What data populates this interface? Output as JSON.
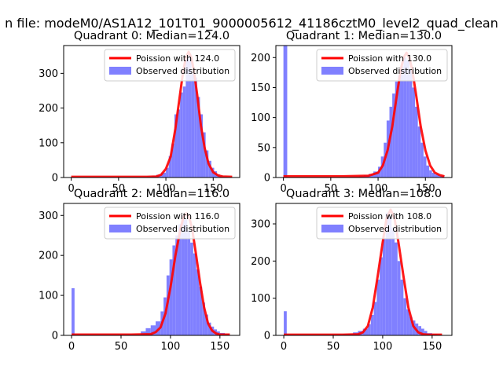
{
  "figure": {
    "suptitle": "n file: modeM0/AS1A12_101T01_9000005612_41186cztM0_level2_quad_clean"
  },
  "colors": {
    "poisson": "#ff0000",
    "observed": "#8080ff",
    "axes": "#000000"
  },
  "chart_data": [
    {
      "type": "bar",
      "title": "Quadrant 0: Median=124.0",
      "xlabel": "",
      "ylabel": "",
      "xlim": [
        -8,
        178
      ],
      "ylim": [
        0,
        380
      ],
      "xticks": [
        0,
        50,
        100,
        150
      ],
      "yticks": [
        0,
        100,
        200,
        300
      ],
      "legend": {
        "position": "upper right",
        "entries": [
          "Poission with 124.0",
          "Observed distribution"
        ]
      },
      "series": [
        {
          "name": "Observed distribution",
          "type": "histogram",
          "bin_edges": [
            0,
            80,
            85,
            90,
            95,
            100,
            103,
            106,
            109,
            112,
            115,
            118,
            121,
            124,
            127,
            130,
            133,
            136,
            139,
            142,
            145,
            148,
            151,
            154,
            157,
            160,
            165,
            170
          ],
          "counts": [
            2,
            3,
            5,
            8,
            14,
            28,
            62,
            98,
            182,
            196,
            245,
            262,
            342,
            355,
            300,
            288,
            232,
            182,
            130,
            78,
            48,
            28,
            18,
            9,
            5,
            2,
            1
          ]
        },
        {
          "name": "Poission with 124.0",
          "type": "line",
          "points": [
            [
              0,
              2
            ],
            [
              60,
              2
            ],
            [
              80,
              2
            ],
            [
              90,
              3
            ],
            [
              95,
              8
            ],
            [
              100,
              25
            ],
            [
              105,
              60
            ],
            [
              110,
              140
            ],
            [
              115,
              240
            ],
            [
              118,
              300
            ],
            [
              121,
              345
            ],
            [
              124,
              362
            ],
            [
              127,
              345
            ],
            [
              130,
              300
            ],
            [
              133,
              240
            ],
            [
              137,
              150
            ],
            [
              141,
              85
            ],
            [
              145,
              40
            ],
            [
              150,
              15
            ],
            [
              155,
              6
            ],
            [
              160,
              3
            ],
            [
              170,
              2
            ]
          ]
        }
      ]
    },
    {
      "type": "bar",
      "title": "Quadrant 1: Median=130.0",
      "xlabel": "",
      "ylabel": "",
      "xlim": [
        -8,
        178
      ],
      "ylim": [
        0,
        220
      ],
      "xticks": [
        0,
        50,
        100,
        150
      ],
      "yticks": [
        0,
        50,
        100,
        150,
        200
      ],
      "legend": {
        "position": "upper right",
        "entries": [
          "Poission with 130.0",
          "Observed distribution"
        ]
      },
      "series": [
        {
          "name": "Observed distribution",
          "type": "histogram",
          "bin_edges": [
            0,
            4,
            70,
            80,
            85,
            90,
            95,
            100,
            103,
            106,
            109,
            112,
            115,
            118,
            121,
            124,
            127,
            130,
            133,
            136,
            139,
            142,
            145,
            148,
            151,
            154,
            157,
            160,
            165,
            170
          ],
          "counts": [
            225,
            1,
            2,
            3,
            4,
            6,
            10,
            18,
            35,
            58,
            95,
            118,
            140,
            160,
            170,
            185,
            200,
            195,
            180,
            150,
            118,
            85,
            58,
            35,
            20,
            12,
            8,
            5,
            3
          ]
        },
        {
          "name": "Poission with 130.0",
          "type": "line",
          "points": [
            [
              0,
              2
            ],
            [
              60,
              2
            ],
            [
              90,
              3
            ],
            [
              100,
              8
            ],
            [
              105,
              20
            ],
            [
              110,
              45
            ],
            [
              115,
              85
            ],
            [
              120,
              140
            ],
            [
              124,
              180
            ],
            [
              127,
              200
            ],
            [
              130,
              208
            ],
            [
              133,
              200
            ],
            [
              136,
              180
            ],
            [
              140,
              140
            ],
            [
              145,
              85
            ],
            [
              150,
              45
            ],
            [
              155,
              20
            ],
            [
              160,
              8
            ],
            [
              165,
              4
            ],
            [
              170,
              2
            ]
          ]
        }
      ]
    },
    {
      "type": "bar",
      "title": "Quadrant 2: Median=116.0",
      "xlabel": "",
      "ylabel": "",
      "xlim": [
        -8,
        170
      ],
      "ylim": [
        0,
        330
      ],
      "xticks": [
        0,
        50,
        100,
        150
      ],
      "yticks": [
        0,
        100,
        200,
        300
      ],
      "legend": {
        "position": "upper right",
        "entries": [
          "Poission with 116.0",
          "Observed distribution"
        ]
      },
      "series": [
        {
          "name": "Observed distribution",
          "type": "histogram",
          "bin_edges": [
            0,
            3,
            70,
            75,
            80,
            85,
            90,
            93,
            96,
            99,
            102,
            105,
            108,
            111,
            114,
            117,
            120,
            123,
            126,
            129,
            132,
            135,
            138,
            141,
            144,
            147,
            150,
            155,
            160
          ],
          "counts": [
            118,
            2,
            10,
            18,
            25,
            35,
            60,
            95,
            150,
            190,
            225,
            250,
            278,
            300,
            290,
            262,
            232,
            205,
            165,
            122,
            82,
            52,
            32,
            22,
            15,
            10,
            6,
            3
          ]
        },
        {
          "name": "Poission with 116.0",
          "type": "line",
          "points": [
            [
              0,
              2
            ],
            [
              60,
              2
            ],
            [
              80,
              3
            ],
            [
              85,
              8
            ],
            [
              90,
              20
            ],
            [
              95,
              55
            ],
            [
              100,
              120
            ],
            [
              105,
              200
            ],
            [
              110,
              265
            ],
            [
              113,
              295
            ],
            [
              116,
              305
            ],
            [
              119,
              295
            ],
            [
              122,
              265
            ],
            [
              126,
              200
            ],
            [
              130,
              130
            ],
            [
              134,
              70
            ],
            [
              138,
              30
            ],
            [
              142,
              12
            ],
            [
              146,
              5
            ],
            [
              150,
              2
            ],
            [
              160,
              2
            ]
          ]
        }
      ]
    },
    {
      "type": "bar",
      "title": "Quadrant 3: Median=108.0",
      "xlabel": "",
      "ylabel": "",
      "xlim": [
        -8,
        170
      ],
      "ylim": [
        0,
        355
      ],
      "xticks": [
        0,
        50,
        100,
        150
      ],
      "yticks": [
        0,
        100,
        200,
        300
      ],
      "legend": {
        "position": "upper right",
        "entries": [
          "Poission with 108.0",
          "Observed distribution"
        ]
      },
      "series": [
        {
          "name": "Observed distribution",
          "type": "histogram",
          "bin_edges": [
            0,
            3,
            60,
            70,
            75,
            80,
            85,
            88,
            91,
            94,
            97,
            100,
            103,
            106,
            109,
            112,
            115,
            118,
            121,
            124,
            127,
            130,
            133,
            136,
            139,
            142,
            145,
            150,
            155
          ],
          "counts": [
            65,
            2,
            4,
            8,
            12,
            18,
            30,
            55,
            90,
            150,
            210,
            260,
            330,
            320,
            290,
            250,
            200,
            150,
            100,
            70,
            50,
            40,
            32,
            25,
            18,
            12,
            6,
            3
          ]
        },
        {
          "name": "Poission with 108.0",
          "type": "line",
          "points": [
            [
              0,
              2
            ],
            [
              60,
              2
            ],
            [
              75,
              3
            ],
            [
              80,
              8
            ],
            [
              85,
              25
            ],
            [
              90,
              75
            ],
            [
              95,
              160
            ],
            [
              100,
              250
            ],
            [
              104,
              315
            ],
            [
              108,
              338
            ],
            [
              112,
              315
            ],
            [
              116,
              250
            ],
            [
              121,
              160
            ],
            [
              126,
              75
            ],
            [
              131,
              25
            ],
            [
              136,
              8
            ],
            [
              141,
              3
            ],
            [
              146,
              2
            ],
            [
              160,
              2
            ]
          ]
        }
      ]
    }
  ]
}
